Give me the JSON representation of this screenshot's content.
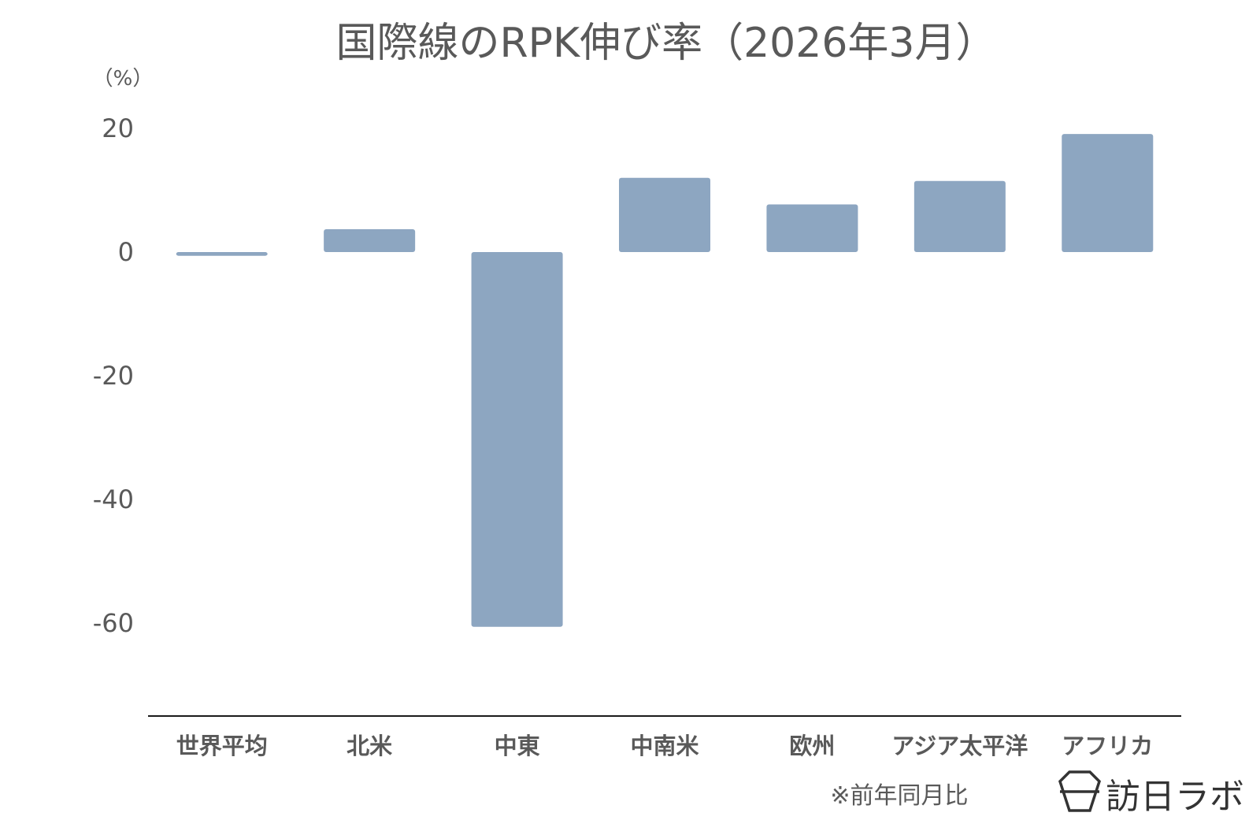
{
  "chart_data": {
    "type": "bar",
    "title": "国際線のRPK伸び率（2026年3月）",
    "ylabel": "（%）",
    "xlabel": "",
    "categories": [
      "世界平均",
      "北米",
      "中東",
      "中南米",
      "欧州",
      "アジア太平洋",
      "アフリカ"
    ],
    "values": [
      -0.6,
      3.7,
      -60.6,
      12.0,
      7.7,
      11.5,
      19.1
    ],
    "ylim": [
      -75,
      25
    ],
    "yticks": [
      "20",
      "0",
      "-20",
      "-40",
      "-60"
    ],
    "ytick_values": [
      20,
      0,
      -20,
      -40,
      -60
    ],
    "grid": false,
    "bar_color": "#8da6c1"
  },
  "footnote": "※前年同月比",
  "brand": {
    "name": "訪日ラボ",
    "icon": "hexagon-logo-icon"
  }
}
